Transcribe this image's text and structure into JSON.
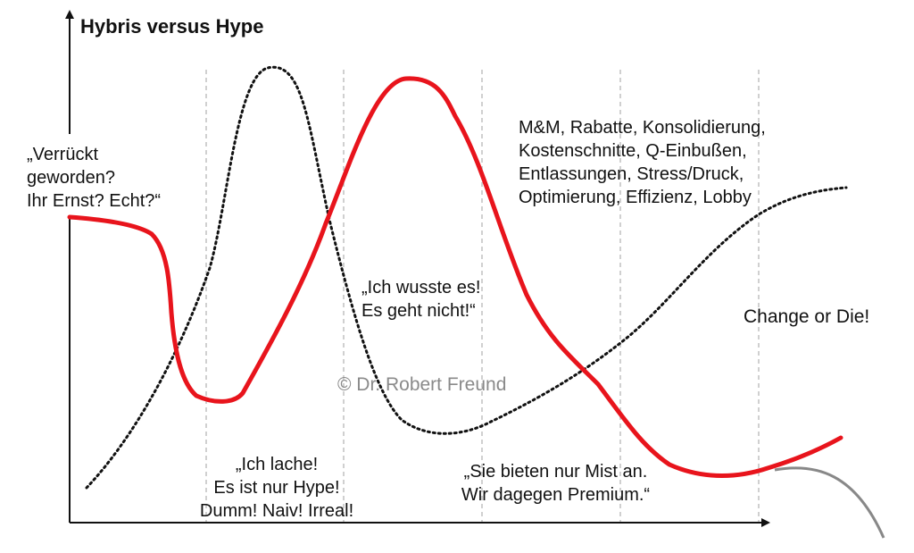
{
  "title": "Hybris versus Hype",
  "annotations": {
    "crazy": "„Verrückt\ngeworden?\nIhr Ernst? Echt?“",
    "laugh": "„Ich lache!\nEs ist nur Hype!\nDumm! Naiv! Irreal!",
    "knew": "„Ich wusste es!\nEs geht nicht!“",
    "premium": "„Sie bieten nur Mist an.\nWir dagegen Premium.“",
    "consequences": "M&M, Rabatte, Konsolidierung,\nKostenschnitte, Q-Einbußen,\nEntlassungen, Stress/Druck,\nOptimierung, Effizienz, Lobby",
    "change": "Change or Die!"
  },
  "watermark": "© Dr. Robert Freund",
  "colors": {
    "hybris_curve": "#e8141c",
    "hype_curve": "#111111",
    "decline_curve": "#888888",
    "phase_divider": "#b0b0b0",
    "axes": "#111111"
  }
}
